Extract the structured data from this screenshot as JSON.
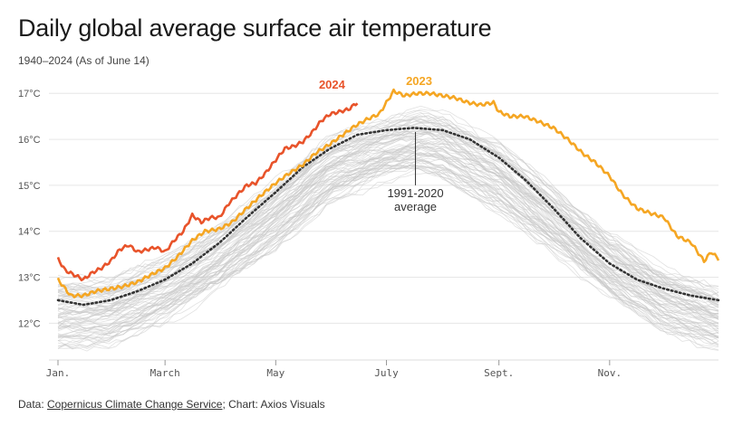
{
  "header": {
    "title": "Daily global average surface air temperature",
    "subtitle": "1940–2024 (As of June 14)"
  },
  "footer": {
    "prefix": "Data: ",
    "source_link": "Copernicus Climate Change Service",
    "suffix": "; Chart: Axios Visuals"
  },
  "colors": {
    "y2024": "#e8532a",
    "y2023": "#f5a623",
    "average": "#333333",
    "history": "#c8c8c8"
  },
  "chart_data": {
    "type": "line",
    "title": "Daily global average surface air temperature",
    "subtitle": "1940–2024 (As of June 14)",
    "xlabel": "",
    "ylabel": "",
    "x_unit": "day of year",
    "xlim": [
      1,
      365
    ],
    "ylim": [
      11.2,
      17.3
    ],
    "x_ticks": [
      {
        "label": "Jan.",
        "day": 1
      },
      {
        "label": "March",
        "day": 60
      },
      {
        "label": "May",
        "day": 121
      },
      {
        "label": "July",
        "day": 182
      },
      {
        "label": "Sept.",
        "day": 244
      },
      {
        "label": "Nov.",
        "day": 305
      }
    ],
    "y_ticks": [
      {
        "label": "12°C",
        "value": 12
      },
      {
        "label": "13°C",
        "value": 13
      },
      {
        "label": "14°C",
        "value": 14
      },
      {
        "label": "15°C",
        "value": 15
      },
      {
        "label": "16°C",
        "value": 16
      },
      {
        "label": "17°C",
        "value": 17
      }
    ],
    "annotations": {
      "label_2024": "2024",
      "label_2023": "2023",
      "avg_line1": "1991-2020",
      "avg_line2": "average"
    },
    "history_band": {
      "name": "1940–2022 daily series",
      "x": [
        1,
        30,
        60,
        90,
        121,
        151,
        182,
        200,
        213,
        244,
        274,
        305,
        335,
        365
      ],
      "min": [
        11.5,
        11.6,
        12.1,
        12.8,
        13.7,
        14.7,
        15.2,
        15.3,
        15.2,
        14.5,
        13.6,
        12.6,
        11.9,
        11.5
      ],
      "max": [
        12.9,
        12.9,
        13.4,
        14.1,
        15.0,
        16.0,
        16.4,
        16.6,
        16.5,
        15.9,
        14.9,
        13.9,
        13.1,
        12.7
      ]
    },
    "series": [
      {
        "name": "1991-2020 average",
        "style": "dotted",
        "x": [
          1,
          15,
          30,
          45,
          60,
          75,
          90,
          105,
          121,
          136,
          151,
          166,
          182,
          197,
          213,
          228,
          244,
          259,
          274,
          289,
          305,
          320,
          335,
          350,
          365
        ],
        "values": [
          12.5,
          12.4,
          12.5,
          12.7,
          12.95,
          13.3,
          13.75,
          14.3,
          14.85,
          15.4,
          15.8,
          16.1,
          16.2,
          16.25,
          16.2,
          16.0,
          15.6,
          15.1,
          14.5,
          13.85,
          13.3,
          12.95,
          12.75,
          12.6,
          12.5
        ]
      },
      {
        "name": "2023",
        "x": [
          1,
          8,
          15,
          22,
          30,
          37,
          45,
          52,
          60,
          67,
          75,
          82,
          90,
          97,
          105,
          112,
          121,
          128,
          136,
          143,
          151,
          158,
          165,
          172,
          178,
          182,
          186,
          192,
          199,
          206,
          213,
          220,
          227,
          234,
          241,
          244,
          250,
          258,
          265,
          274,
          282,
          290,
          297,
          305,
          312,
          320,
          327,
          335,
          342,
          350,
          357,
          361,
          365
        ],
        "values": [
          12.95,
          12.6,
          12.6,
          12.7,
          12.75,
          12.8,
          12.9,
          13.05,
          13.2,
          13.45,
          13.8,
          14.0,
          14.05,
          14.2,
          14.5,
          14.75,
          15.05,
          15.25,
          15.45,
          15.7,
          15.9,
          16.1,
          16.3,
          16.45,
          16.55,
          16.8,
          17.05,
          16.95,
          17.0,
          17.0,
          16.95,
          16.9,
          16.8,
          16.75,
          16.8,
          16.6,
          16.5,
          16.5,
          16.4,
          16.25,
          16.0,
          15.7,
          15.5,
          15.2,
          14.8,
          14.5,
          14.4,
          14.3,
          13.9,
          13.75,
          13.35,
          13.55,
          13.4
        ]
      },
      {
        "name": "2024",
        "x": [
          1,
          5,
          10,
          15,
          20,
          25,
          30,
          35,
          40,
          45,
          50,
          55,
          60,
          65,
          70,
          75,
          80,
          85,
          90,
          95,
          100,
          105,
          110,
          115,
          121,
          126,
          131,
          136,
          141,
          146,
          151,
          156,
          161,
          166
        ],
        "values": [
          13.4,
          13.15,
          13.05,
          12.95,
          13.1,
          13.2,
          13.35,
          13.6,
          13.7,
          13.55,
          13.6,
          13.65,
          13.55,
          13.8,
          14.0,
          14.35,
          14.2,
          14.3,
          14.3,
          14.6,
          14.8,
          15.0,
          15.05,
          15.25,
          15.55,
          15.8,
          15.85,
          15.95,
          16.15,
          16.4,
          16.55,
          16.6,
          16.65,
          16.8
        ]
      }
    ]
  }
}
